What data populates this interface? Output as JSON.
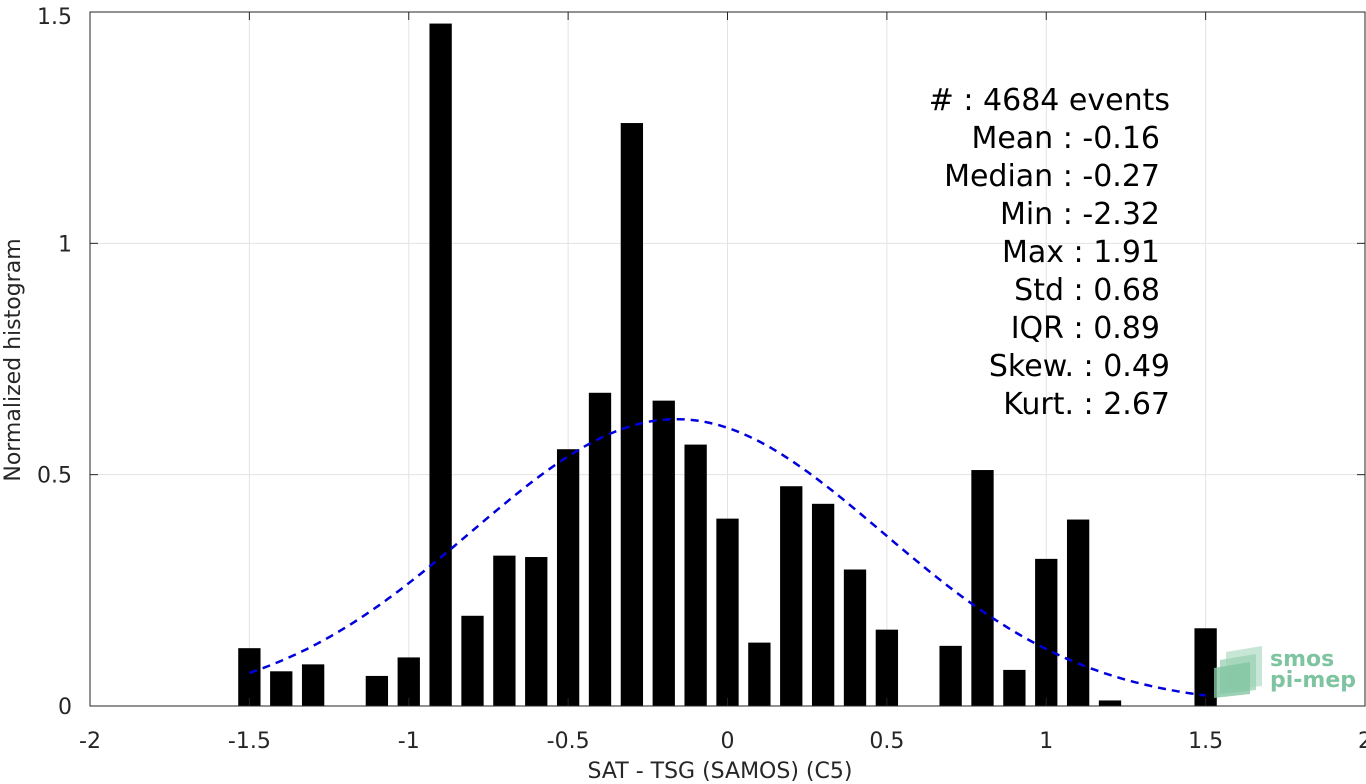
{
  "chart_data": {
    "type": "bar",
    "xlabel": "SAT - TSG (SAMOS) (C5)",
    "ylabel": "Normalized histogram",
    "xlim": [
      -2,
      2
    ],
    "ylim": [
      0,
      1.5
    ],
    "xticks": [
      -2,
      -1.5,
      -1,
      -0.5,
      0,
      0.5,
      1,
      1.5,
      2
    ],
    "xtick_labels": [
      "-2",
      "-1.5",
      "-1",
      "-0.5",
      "0",
      "0.5",
      "1",
      "1.5",
      "2"
    ],
    "yticks": [
      0,
      0.5,
      1,
      1.5
    ],
    "ytick_labels": [
      "0",
      "0.5",
      "1",
      "1.5"
    ],
    "grid": true,
    "bar_color": "#000000",
    "bar_width": 0.07,
    "bins": [
      {
        "x": -1.5,
        "y": 0.125
      },
      {
        "x": -1.4,
        "y": 0.075
      },
      {
        "x": -1.3,
        "y": 0.09
      },
      {
        "x": -1.1,
        "y": 0.065
      },
      {
        "x": -1.0,
        "y": 0.105
      },
      {
        "x": -0.9,
        "y": 1.475
      },
      {
        "x": -0.8,
        "y": 0.195
      },
      {
        "x": -0.7,
        "y": 0.325
      },
      {
        "x": -0.6,
        "y": 0.322
      },
      {
        "x": -0.5,
        "y": 0.555
      },
      {
        "x": -0.4,
        "y": 0.677
      },
      {
        "x": -0.3,
        "y": 1.26
      },
      {
        "x": -0.2,
        "y": 0.66
      },
      {
        "x": -0.1,
        "y": 0.565
      },
      {
        "x": 0.0,
        "y": 0.405
      },
      {
        "x": 0.1,
        "y": 0.137
      },
      {
        "x": 0.2,
        "y": 0.475
      },
      {
        "x": 0.3,
        "y": 0.437
      },
      {
        "x": 0.4,
        "y": 0.295
      },
      {
        "x": 0.5,
        "y": 0.165
      },
      {
        "x": 0.7,
        "y": 0.13
      },
      {
        "x": 0.8,
        "y": 0.51
      },
      {
        "x": 0.9,
        "y": 0.078
      },
      {
        "x": 1.0,
        "y": 0.318
      },
      {
        "x": 1.1,
        "y": 0.403
      },
      {
        "x": 1.2,
        "y": 0.012
      },
      {
        "x": 1.5,
        "y": 0.168
      }
    ],
    "fit_curve": {
      "style": "dashed",
      "color": "#0000dd",
      "mean": -0.16,
      "std": 0.645,
      "peak": 0.62,
      "x_range": [
        -1.5,
        1.5
      ]
    },
    "stats": [
      {
        "label": "#  : 4684 events"
      },
      {
        "label": "Mean : -0.16"
      },
      {
        "label": "Median : -0.27"
      },
      {
        "label": "Min : -2.32"
      },
      {
        "label": "Max : 1.91"
      },
      {
        "label": "Std : 0.68"
      },
      {
        "label": "IQR : 0.89"
      },
      {
        "label": "Skew. : 0.49"
      },
      {
        "label": "Kurt. : 2.67"
      }
    ],
    "logo": {
      "line1": "smos",
      "line2": "pi-mep",
      "color": "#7fc4a0"
    }
  }
}
